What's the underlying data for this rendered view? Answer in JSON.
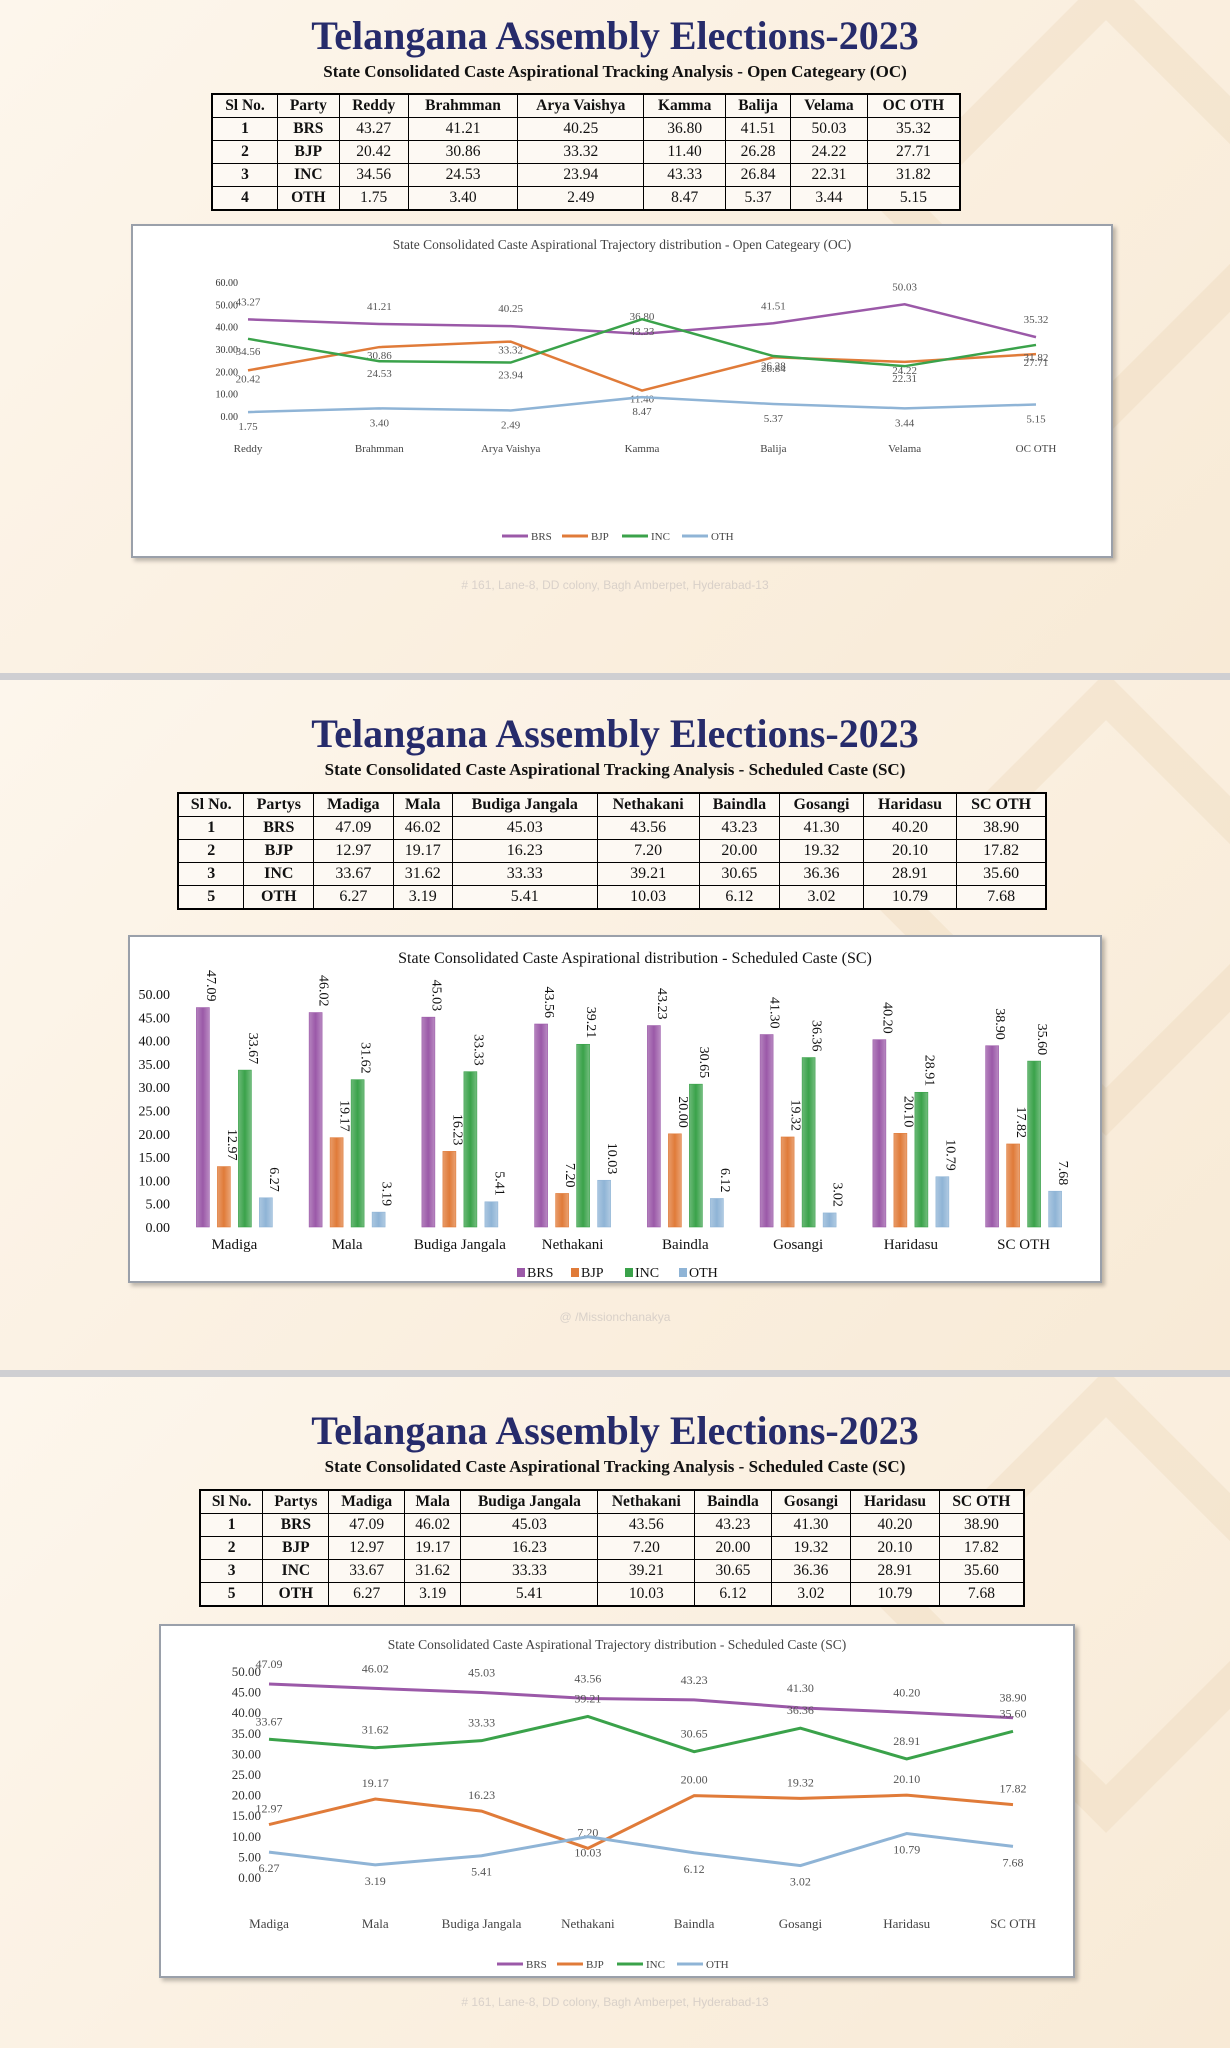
{
  "panels": [
    {
      "title": "Telangana Assembly Elections-2023",
      "subtitle": "State  Consolidated Caste Aspirational Tracking  Analysis - Open Categeary (OC)",
      "watermark": "Mission",
      "table": {
        "headers": [
          "Sl No.",
          "Party",
          "Reddy",
          "Brahmman",
          "Arya Vaishya",
          "Kamma",
          "Balija",
          "Velama",
          "OC OTH"
        ],
        "rows": [
          [
            "1",
            "BRS",
            "43.27",
            "41.21",
            "40.25",
            "36.80",
            "41.51",
            "50.03",
            "35.32"
          ],
          [
            "2",
            "BJP",
            "20.42",
            "30.86",
            "33.32",
            "11.40",
            "26.28",
            "24.22",
            "27.71"
          ],
          [
            "3",
            "INC",
            "34.56",
            "24.53",
            "23.94",
            "43.33",
            "26.84",
            "22.31",
            "31.82"
          ],
          [
            "4",
            "OTH",
            "1.75",
            "3.40",
            "2.49",
            "8.47",
            "5.37",
            "3.44",
            "5.15"
          ]
        ]
      },
      "footer": "# 161, Lane-8, DD colony, Bagh Amberpet, Hyderabad-13"
    },
    {
      "title": "Telangana Assembly Elections-2023",
      "subtitle": "State  Consolidated Caste Aspirational Tracking  Analysis - Scheduled Caste (SC)",
      "watermark": "Mission",
      "table": {
        "headers": [
          "Sl No.",
          "Partys",
          "Madiga",
          "Mala",
          "Budiga Jangala",
          "Nethakani",
          "Baindla",
          "Gosangi",
          "Haridasu",
          "SC OTH"
        ],
        "rows": [
          [
            "1",
            "BRS",
            "47.09",
            "46.02",
            "45.03",
            "43.56",
            "43.23",
            "41.30",
            "40.20",
            "38.90"
          ],
          [
            "2",
            "BJP",
            "12.97",
            "19.17",
            "16.23",
            "7.20",
            "20.00",
            "19.32",
            "20.10",
            "17.82"
          ],
          [
            "3",
            "INC",
            "33.67",
            "31.62",
            "33.33",
            "39.21",
            "30.65",
            "36.36",
            "28.91",
            "35.60"
          ],
          [
            "5",
            "OTH",
            "6.27",
            "3.19",
            "5.41",
            "10.03",
            "6.12",
            "3.02",
            "10.79",
            "7.68"
          ]
        ]
      },
      "footer": "@ /Missionchanakya"
    },
    {
      "title": "Telangana Assembly Elections-2023",
      "subtitle": "State  Consolidated Caste Aspirational Tracking  Analysis - Scheduled Caste (SC)",
      "watermark": "Mission",
      "table": {
        "headers": [
          "Sl No.",
          "Partys",
          "Madiga",
          "Mala",
          "Budiga Jangala",
          "Nethakani",
          "Baindla",
          "Gosangi",
          "Haridasu",
          "SC OTH"
        ],
        "rows": [
          [
            "1",
            "BRS",
            "47.09",
            "46.02",
            "45.03",
            "43.56",
            "43.23",
            "41.30",
            "40.20",
            "38.90"
          ],
          [
            "2",
            "BJP",
            "12.97",
            "19.17",
            "16.23",
            "7.20",
            "20.00",
            "19.32",
            "20.10",
            "17.82"
          ],
          [
            "3",
            "INC",
            "33.67",
            "31.62",
            "33.33",
            "39.21",
            "30.65",
            "36.36",
            "28.91",
            "35.60"
          ],
          [
            "5",
            "OTH",
            "6.27",
            "3.19",
            "5.41",
            "10.03",
            "6.12",
            "3.02",
            "10.79",
            "7.68"
          ]
        ]
      },
      "footer": "# 161, Lane-8, DD colony, Bagh Amberpet, Hyderabad-13"
    }
  ],
  "chart_data": [
    {
      "type": "line",
      "title": "State  Consolidated Caste Aspirational Trajectory  distribution - Open Categeary (OC)",
      "categories": [
        "Reddy",
        "Brahmman",
        "Arya Vaishya",
        "Kamma",
        "Balija",
        "Velama",
        "OC OTH"
      ],
      "series": [
        {
          "name": "BRS",
          "color": "#9b59a8",
          "values": [
            43.27,
            41.21,
            40.25,
            36.8,
            41.51,
            50.03,
            35.32
          ]
        },
        {
          "name": "BJP",
          "color": "#e07b39",
          "values": [
            20.42,
            30.86,
            33.32,
            11.4,
            26.28,
            24.22,
            27.71
          ]
        },
        {
          "name": "INC",
          "color": "#3aa24a",
          "values": [
            34.56,
            24.53,
            23.94,
            43.33,
            26.84,
            22.31,
            31.82
          ]
        },
        {
          "name": "OTH",
          "color": "#8fb4d6",
          "values": [
            1.75,
            3.4,
            2.49,
            8.47,
            5.37,
            3.44,
            5.15
          ]
        }
      ],
      "ylim": [
        0,
        60
      ],
      "yticks": [
        "0.00",
        "10.00",
        "20.00",
        "30.00",
        "40.00",
        "50.00",
        "60.00"
      ],
      "grid": false,
      "legend": "bottom"
    },
    {
      "type": "bar",
      "title": "State  Consolidated Caste Aspirational distribution - Scheduled Caste (SC)",
      "categories": [
        "Madiga",
        "Mala",
        "Budiga Jangala",
        "Nethakani",
        "Baindla",
        "Gosangi",
        "Haridasu",
        "SC OTH"
      ],
      "series": [
        {
          "name": "BRS",
          "color": "#9b59a8",
          "values": [
            47.09,
            46.02,
            45.03,
            43.56,
            43.23,
            41.3,
            40.2,
            38.9
          ]
        },
        {
          "name": "BJP",
          "color": "#e07b39",
          "values": [
            12.97,
            19.17,
            16.23,
            7.2,
            20.0,
            19.32,
            20.1,
            17.82
          ]
        },
        {
          "name": "INC",
          "color": "#3aa24a",
          "values": [
            33.67,
            31.62,
            33.33,
            39.21,
            30.65,
            36.36,
            28.91,
            35.6
          ]
        },
        {
          "name": "OTH",
          "color": "#8fb4d6",
          "values": [
            6.27,
            3.19,
            5.41,
            10.03,
            6.12,
            3.02,
            10.79,
            7.68
          ]
        }
      ],
      "ylim": [
        0,
        50
      ],
      "yticks": [
        "0.00",
        "5.00",
        "10.00",
        "15.00",
        "20.00",
        "25.00",
        "30.00",
        "35.00",
        "40.00",
        "45.00",
        "50.00"
      ],
      "grid": false,
      "legend": "bottom"
    },
    {
      "type": "line",
      "title": "State  Consolidated Caste Aspirational Trajectory  distribution - Scheduled Caste (SC)",
      "categories": [
        "Madiga",
        "Mala",
        "Budiga Jangala",
        "Nethakani",
        "Baindla",
        "Gosangi",
        "Haridasu",
        "SC OTH"
      ],
      "series": [
        {
          "name": "BRS",
          "color": "#9b59a8",
          "values": [
            47.09,
            46.02,
            45.03,
            43.56,
            43.23,
            41.3,
            40.2,
            38.9
          ]
        },
        {
          "name": "BJP",
          "color": "#e07b39",
          "values": [
            12.97,
            19.17,
            16.23,
            7.2,
            20.0,
            19.32,
            20.1,
            17.82
          ]
        },
        {
          "name": "INC",
          "color": "#3aa24a",
          "values": [
            33.67,
            31.62,
            33.33,
            39.21,
            30.65,
            36.36,
            28.91,
            35.6
          ]
        },
        {
          "name": "OTH",
          "color": "#8fb4d6",
          "values": [
            6.27,
            3.19,
            5.41,
            10.03,
            6.12,
            3.02,
            10.79,
            7.68
          ]
        }
      ],
      "ylim": [
        0,
        50
      ],
      "yticks": [
        "0.00",
        "5.00",
        "10.00",
        "15.00",
        "20.00",
        "25.00",
        "30.00",
        "35.00",
        "40.00",
        "45.00",
        "50.00"
      ],
      "grid": false,
      "legend": "bottom"
    }
  ]
}
